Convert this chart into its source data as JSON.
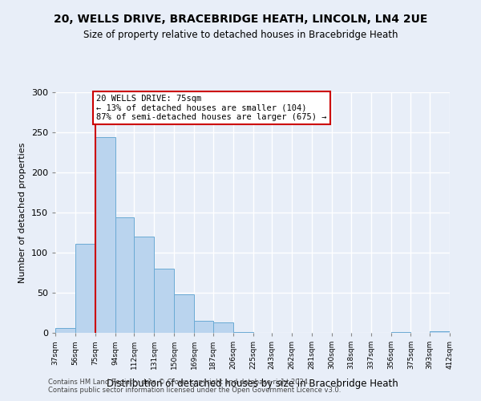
{
  "title": "20, WELLS DRIVE, BRACEBRIDGE HEATH, LINCOLN, LN4 2UE",
  "subtitle": "Size of property relative to detached houses in Bracebridge Heath",
  "xlabel": "Distribution of detached houses by size in Bracebridge Heath",
  "ylabel": "Number of detached properties",
  "bin_edges": [
    37,
    56,
    75,
    94,
    112,
    131,
    150,
    169,
    187,
    206,
    225,
    243,
    262,
    281,
    300,
    318,
    337,
    356,
    375,
    393,
    412
  ],
  "bin_labels": [
    "37sqm",
    "56sqm",
    "75sqm",
    "94sqm",
    "112sqm",
    "131sqm",
    "150sqm",
    "169sqm",
    "187sqm",
    "206sqm",
    "225sqm",
    "243sqm",
    "262sqm",
    "281sqm",
    "300sqm",
    "318sqm",
    "337sqm",
    "356sqm",
    "375sqm",
    "393sqm",
    "412sqm"
  ],
  "bar_heights": [
    6,
    111,
    244,
    144,
    120,
    80,
    48,
    15,
    13,
    1,
    0,
    0,
    0,
    0,
    0,
    0,
    0,
    1,
    0,
    2
  ],
  "bar_color": "#bad4ee",
  "bar_edge_color": "#6aaad4",
  "property_value": 75,
  "vline_color": "#cc0000",
  "annotation_line1": "20 WELLS DRIVE: 75sqm",
  "annotation_line2": "← 13% of detached houses are smaller (104)",
  "annotation_line3": "87% of semi-detached houses are larger (675) →",
  "annotation_box_color": "#ffffff",
  "annotation_box_edge_color": "#cc0000",
  "ylim": [
    0,
    300
  ],
  "yticks": [
    0,
    50,
    100,
    150,
    200,
    250,
    300
  ],
  "bg_color": "#e8eef8",
  "plot_bg_color": "#e8eef8",
  "grid_color": "#ffffff",
  "footer_line1": "Contains HM Land Registry data © Crown copyright and database right 2024.",
  "footer_line2": "Contains public sector information licensed under the Open Government Licence v3.0."
}
